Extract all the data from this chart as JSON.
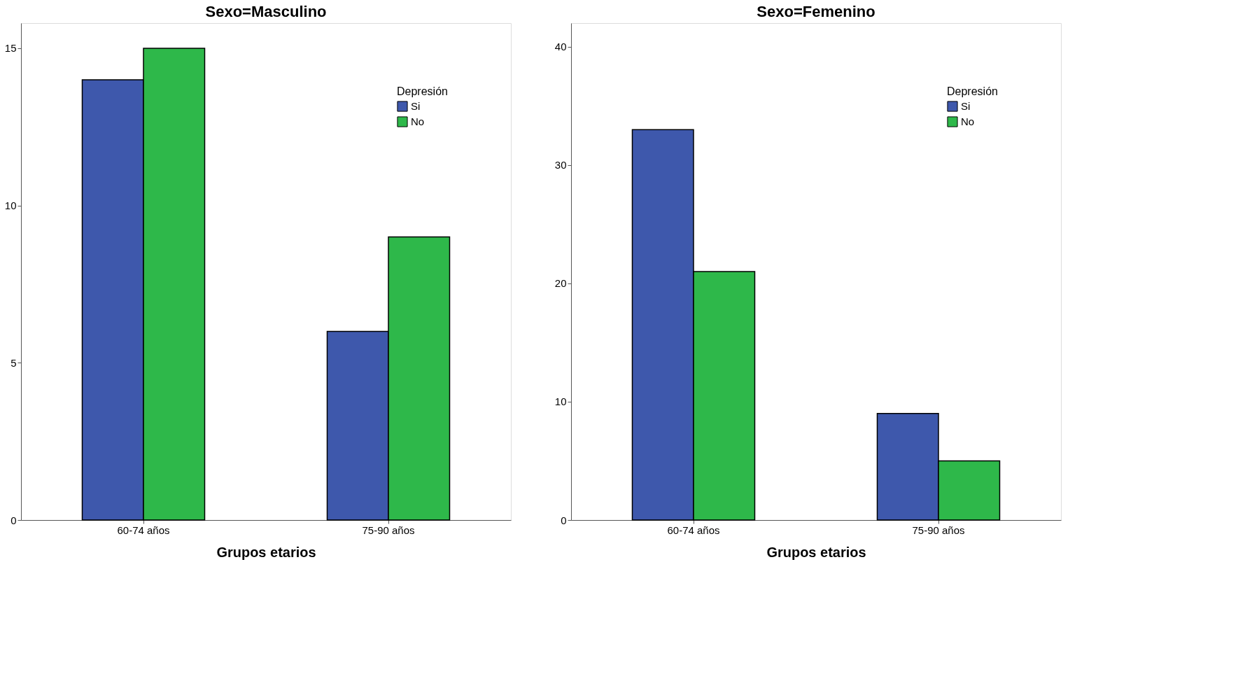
{
  "chart_data": [
    {
      "type": "bar",
      "title": "Sexo=Masculino",
      "xlabel": "Grupos etarios",
      "categories": [
        "60-74 años",
        "75-90 años"
      ],
      "legend_title": "Depresión",
      "legend": "top right",
      "ylim": [
        0,
        15.8
      ],
      "yticks": [
        0,
        5,
        10,
        15
      ],
      "series": [
        {
          "name": "Si",
          "color": "#3e58ac",
          "values": [
            14,
            6
          ]
        },
        {
          "name": "No",
          "color": "#2eb84a",
          "values": [
            15,
            9
          ]
        }
      ]
    },
    {
      "type": "bar",
      "title": "Sexo=Femenino",
      "xlabel": "Grupos etarios",
      "categories": [
        "60-74 años",
        "75-90 años"
      ],
      "legend_title": "Depresión",
      "legend": "top right",
      "ylim": [
        0,
        42
      ],
      "yticks": [
        0,
        10,
        20,
        30,
        40
      ],
      "series": [
        {
          "name": "Si",
          "color": "#3e58ac",
          "values": [
            33,
            9
          ]
        },
        {
          "name": "No",
          "color": "#2eb84a",
          "values": [
            21,
            5
          ]
        }
      ]
    }
  ]
}
